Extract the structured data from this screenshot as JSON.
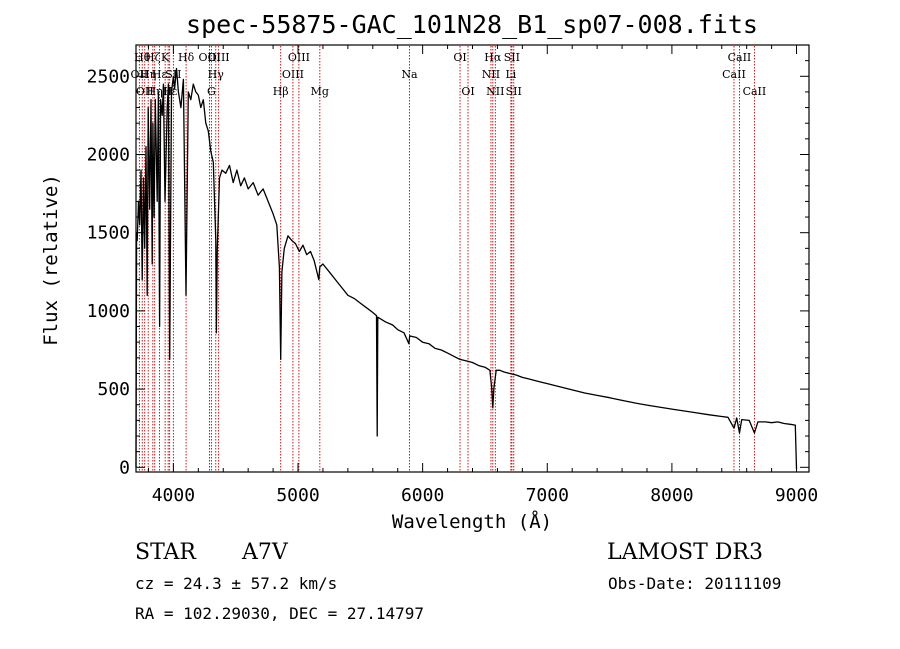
{
  "chart_data": {
    "type": "line",
    "title": "spec-55875-GAC_101N28_B1_sp07-008.fits",
    "xlabel": "Wavelength (Å)",
    "ylabel": "Flux (relative)",
    "xlim": [
      3700,
      9100
    ],
    "ylim": [
      -30,
      2700
    ],
    "xticks": [
      4000,
      5000,
      6000,
      7000,
      8000,
      9000
    ],
    "yticks": [
      0,
      500,
      1000,
      1500,
      2000,
      2500
    ],
    "x_minor_step": 200,
    "y_minor_step": 100,
    "series": [
      {
        "name": "spectrum",
        "color": "#000000",
        "points": [
          [
            3700,
            0
          ],
          [
            3705,
            1500
          ],
          [
            3710,
            1450
          ],
          [
            3720,
            1700
          ],
          [
            3730,
            1550
          ],
          [
            3740,
            1900
          ],
          [
            3750,
            1200
          ],
          [
            3760,
            1850
          ],
          [
            3770,
            1400
          ],
          [
            3780,
            2050
          ],
          [
            3790,
            1100
          ],
          [
            3798,
            2300
          ],
          [
            3810,
            1650
          ],
          [
            3820,
            2350
          ],
          [
            3830,
            1300
          ],
          [
            3836,
            2200
          ],
          [
            3845,
            1600
          ],
          [
            3855,
            2350
          ],
          [
            3870,
            1700
          ],
          [
            3880,
            2400
          ],
          [
            3889,
            900
          ],
          [
            3897,
            2350
          ],
          [
            3910,
            2250
          ],
          [
            3920,
            2450
          ],
          [
            3933,
            1700
          ],
          [
            3950,
            2300
          ],
          [
            3960,
            2450
          ],
          [
            3970,
            690
          ],
          [
            3985,
            2400
          ],
          [
            4000,
            2500
          ],
          [
            4010,
            2420
          ],
          [
            4025,
            2550
          ],
          [
            4040,
            2400
          ],
          [
            4060,
            2300
          ],
          [
            4080,
            2480
          ],
          [
            4101,
            1100
          ],
          [
            4120,
            2400
          ],
          [
            4140,
            2350
          ],
          [
            4160,
            2450
          ],
          [
            4180,
            2400
          ],
          [
            4200,
            2380
          ],
          [
            4220,
            2300
          ],
          [
            4240,
            2350
          ],
          [
            4260,
            2200
          ],
          [
            4280,
            2150
          ],
          [
            4300,
            2020
          ],
          [
            4320,
            1950
          ],
          [
            4340,
            1450
          ],
          [
            4345,
            860
          ],
          [
            4352,
            1400
          ],
          [
            4370,
            1850
          ],
          [
            4390,
            1900
          ],
          [
            4420,
            1880
          ],
          [
            4450,
            1930
          ],
          [
            4480,
            1820
          ],
          [
            4510,
            1900
          ],
          [
            4540,
            1800
          ],
          [
            4570,
            1850
          ],
          [
            4600,
            1780
          ],
          [
            4640,
            1820
          ],
          [
            4680,
            1740
          ],
          [
            4720,
            1780
          ],
          [
            4760,
            1700
          ],
          [
            4800,
            1620
          ],
          [
            4830,
            1550
          ],
          [
            4851,
            1280
          ],
          [
            4861,
            690
          ],
          [
            4871,
            1250
          ],
          [
            4890,
            1400
          ],
          [
            4920,
            1480
          ],
          [
            4950,
            1450
          ],
          [
            4980,
            1430
          ],
          [
            5010,
            1380
          ],
          [
            5040,
            1420
          ],
          [
            5070,
            1360
          ],
          [
            5100,
            1380
          ],
          [
            5130,
            1320
          ],
          [
            5167,
            1200
          ],
          [
            5175,
            1280
          ],
          [
            5200,
            1300
          ],
          [
            5250,
            1250
          ],
          [
            5300,
            1200
          ],
          [
            5350,
            1150
          ],
          [
            5400,
            1100
          ],
          [
            5450,
            1080
          ],
          [
            5500,
            1050
          ],
          [
            5550,
            1020
          ],
          [
            5600,
            990
          ],
          [
            5630,
            970
          ],
          [
            5635,
            200
          ],
          [
            5640,
            960
          ],
          [
            5700,
            930
          ],
          [
            5760,
            910
          ],
          [
            5800,
            880
          ],
          [
            5850,
            860
          ],
          [
            5890,
            790
          ],
          [
            5896,
            840
          ],
          [
            5950,
            830
          ],
          [
            6000,
            800
          ],
          [
            6050,
            790
          ],
          [
            6100,
            760
          ],
          [
            6150,
            750
          ],
          [
            6200,
            730
          ],
          [
            6250,
            710
          ],
          [
            6300,
            690
          ],
          [
            6350,
            680
          ],
          [
            6400,
            670
          ],
          [
            6450,
            650
          ],
          [
            6500,
            640
          ],
          [
            6540,
            620
          ],
          [
            6555,
            500
          ],
          [
            6563,
            380
          ],
          [
            6571,
            500
          ],
          [
            6590,
            620
          ],
          [
            6620,
            620
          ],
          [
            6650,
            610
          ],
          [
            6700,
            600
          ],
          [
            6750,
            590
          ],
          [
            6800,
            575
          ],
          [
            6850,
            565
          ],
          [
            6900,
            555
          ],
          [
            6950,
            545
          ],
          [
            7000,
            535
          ],
          [
            7100,
            515
          ],
          [
            7200,
            495
          ],
          [
            7300,
            475
          ],
          [
            7400,
            460
          ],
          [
            7500,
            445
          ],
          [
            7600,
            428
          ],
          [
            7700,
            412
          ],
          [
            7800,
            398
          ],
          [
            7900,
            385
          ],
          [
            8000,
            372
          ],
          [
            8100,
            360
          ],
          [
            8200,
            348
          ],
          [
            8300,
            336
          ],
          [
            8400,
            325
          ],
          [
            8450,
            320
          ],
          [
            8498,
            250
          ],
          [
            8520,
            315
          ],
          [
            8542,
            220
          ],
          [
            8560,
            305
          ],
          [
            8620,
            300
          ],
          [
            8662,
            220
          ],
          [
            8690,
            290
          ],
          [
            8750,
            290
          ],
          [
            8800,
            285
          ],
          [
            8850,
            290
          ],
          [
            8900,
            280
          ],
          [
            8950,
            275
          ],
          [
            8990,
            270
          ],
          [
            9000,
            -10
          ]
        ]
      }
    ],
    "line_markers": [
      {
        "wavelength": 3727,
        "label": "OII",
        "row": 2
      },
      {
        "wavelength": 3750,
        "label": "Hθ",
        "row": 1
      },
      {
        "wavelength": 3770,
        "label": "OII",
        "row": 3
      },
      {
        "wavelength": 3798,
        "label": "Hη",
        "row": 2
      },
      {
        "wavelength": 3835,
        "label": "Hζ",
        "row": 1
      },
      {
        "wavelength": 3850,
        "label": "Hη",
        "row": 3
      },
      {
        "wavelength": 3889,
        "label": "Hε",
        "row": 2
      },
      {
        "wavelength": 3934,
        "label": "K",
        "row": 1
      },
      {
        "wavelength": 3958,
        "label": "H",
        "row": 3
      },
      {
        "wavelength": 3970,
        "label": "Hε",
        "row": 3
      },
      {
        "wavelength": 4000,
        "label": "SII",
        "row": 2
      },
      {
        "wavelength": 4102,
        "label": "Hδ",
        "row": 1
      },
      {
        "wavelength": 4290,
        "label": "OIII",
        "row": 1
      },
      {
        "wavelength": 4305,
        "label": "G",
        "row": 3
      },
      {
        "wavelength": 4340,
        "label": "Hγ",
        "row": 2
      },
      {
        "wavelength": 4363,
        "label": "OIII",
        "row": 1
      },
      {
        "wavelength": 4861,
        "label": "Hβ",
        "row": 3
      },
      {
        "wavelength": 4959,
        "label": "OIII",
        "row": 2
      },
      {
        "wavelength": 5007,
        "label": "OIII",
        "row": 1
      },
      {
        "wavelength": 5175,
        "label": "Mg",
        "row": 3
      },
      {
        "wavelength": 5894,
        "label": "Na",
        "row": 2
      },
      {
        "wavelength": 6300,
        "label": "OI",
        "row": 1
      },
      {
        "wavelength": 6364,
        "label": "OI",
        "row": 3
      },
      {
        "wavelength": 6548,
        "label": "NII",
        "row": 2
      },
      {
        "wavelength": 6563,
        "label": "Hα",
        "row": 1
      },
      {
        "wavelength": 6583,
        "label": "NII",
        "row": 3
      },
      {
        "wavelength": 6708,
        "label": "Li",
        "row": 2
      },
      {
        "wavelength": 6716,
        "label": "SII",
        "row": 1
      },
      {
        "wavelength": 6731,
        "label": "SII",
        "row": 3
      },
      {
        "wavelength": 8498,
        "label": "CaII",
        "row": 2
      },
      {
        "wavelength": 8542,
        "label": "CaII",
        "row": 1
      },
      {
        "wavelength": 8662,
        "label": "CaII",
        "row": 3
      }
    ],
    "marker_color": "#c00000"
  },
  "info": {
    "object_type": "STAR",
    "spectral_class": "A7V",
    "survey": "LAMOST DR3",
    "redshift_text": "cz = 24.3 ± 57.2 km/s",
    "obs_date_text": "Obs-Date: 20111109",
    "coords_text": "RA = 102.29030, DEC =  27.14797"
  }
}
